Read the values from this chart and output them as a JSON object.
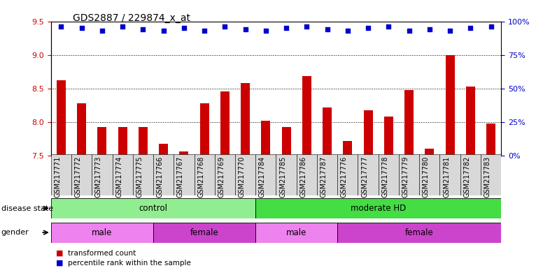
{
  "title": "GDS2887 / 229874_x_at",
  "samples": [
    "GSM217771",
    "GSM217772",
    "GSM217773",
    "GSM217774",
    "GSM217775",
    "GSM217766",
    "GSM217767",
    "GSM217768",
    "GSM217769",
    "GSM217770",
    "GSM217784",
    "GSM217785",
    "GSM217786",
    "GSM217787",
    "GSM217776",
    "GSM217777",
    "GSM217778",
    "GSM217779",
    "GSM217780",
    "GSM217781",
    "GSM217782",
    "GSM217783"
  ],
  "bar_values": [
    8.62,
    8.28,
    7.92,
    7.92,
    7.92,
    7.67,
    7.56,
    8.28,
    8.46,
    8.58,
    8.02,
    7.92,
    8.68,
    8.22,
    7.72,
    8.17,
    8.08,
    8.48,
    7.6,
    9.0,
    8.53,
    7.98
  ],
  "percentile_values_left": [
    9.42,
    9.4,
    9.36,
    9.42,
    9.38,
    9.36,
    9.4,
    9.36,
    9.42,
    9.38,
    9.36,
    9.4,
    9.42,
    9.38,
    9.36,
    9.4,
    9.42,
    9.36,
    9.38,
    9.36,
    9.4,
    9.42
  ],
  "bar_color": "#cc0000",
  "percentile_color": "#0000cc",
  "ylim_left": [
    7.5,
    9.5
  ],
  "ylim_right": [
    0,
    100
  ],
  "yticks_left": [
    7.5,
    8.0,
    8.5,
    9.0,
    9.5
  ],
  "yticks_right": [
    0,
    25,
    50,
    75,
    100
  ],
  "grid_lines": [
    8.0,
    8.5,
    9.0
  ],
  "disease_groups": [
    {
      "label": "control",
      "start": 0,
      "end": 10,
      "color": "#90EE90"
    },
    {
      "label": "moderate HD",
      "start": 10,
      "end": 22,
      "color": "#44DD44"
    }
  ],
  "gender_groups": [
    {
      "label": "male",
      "start": 0,
      "end": 5,
      "color": "#EE82EE"
    },
    {
      "label": "female",
      "start": 5,
      "end": 10,
      "color": "#CC44CC"
    },
    {
      "label": "male",
      "start": 10,
      "end": 14,
      "color": "#EE82EE"
    },
    {
      "label": "female",
      "start": 14,
      "end": 22,
      "color": "#CC44CC"
    }
  ],
  "disease_label": "disease state",
  "gender_label": "gender",
  "legend_bar_label": "transformed count",
  "legend_pct_label": "percentile rank within the sample",
  "bar_width": 0.45,
  "tick_label_fontsize": 7,
  "title_fontsize": 10,
  "left_tick_color": "#cc0000",
  "right_tick_color": "#0000cc",
  "background_color": "#ffffff",
  "xtick_bg": "#d8d8d8"
}
